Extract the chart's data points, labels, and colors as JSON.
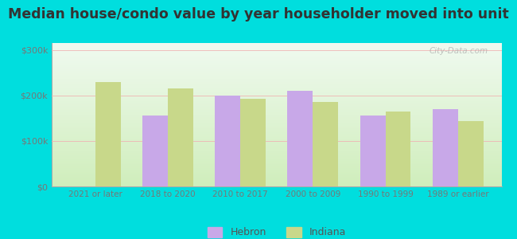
{
  "title": "Median house/condo value by year householder moved into unit",
  "categories": [
    "2021 or later",
    "2018 to 2020",
    "2010 to 2017",
    "2000 to 2009",
    "1990 to 1999",
    "1989 or earlier"
  ],
  "hebron_values": [
    0,
    155000,
    200000,
    210000,
    155000,
    170000
  ],
  "indiana_values": [
    230000,
    215000,
    192000,
    185000,
    165000,
    143000
  ],
  "hebron_color": "#c8a8e8",
  "indiana_color": "#c8d88a",
  "background_outer": "#00dede",
  "yticks": [
    0,
    100000,
    200000,
    300000
  ],
  "ylim": [
    0,
    315000
  ],
  "watermark": "City-Data.com",
  "legend_labels": [
    "Hebron",
    "Indiana"
  ],
  "bar_width": 0.35,
  "title_fontsize": 12.5
}
